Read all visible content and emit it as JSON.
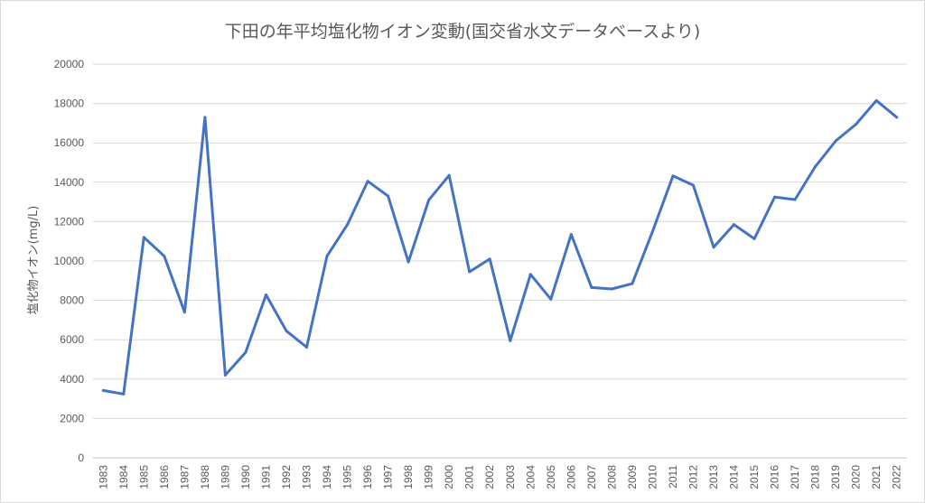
{
  "chart_data": {
    "type": "line",
    "title": "下田の年平均塩化物イオン変動(国交省水文データベースより)",
    "xlabel": "",
    "ylabel": "塩化物イオン(mg/L)",
    "ylim": [
      0,
      20000
    ],
    "yticks": [
      0,
      2000,
      4000,
      6000,
      8000,
      10000,
      12000,
      14000,
      16000,
      18000,
      20000
    ],
    "grid": true,
    "legend": "none",
    "categories": [
      "1983",
      "1984",
      "1985",
      "1986",
      "1987",
      "1988",
      "1989",
      "1990",
      "1991",
      "1992",
      "1993",
      "1994",
      "1995",
      "1996",
      "1997",
      "1998",
      "1999",
      "2000",
      "2001",
      "2002",
      "2003",
      "2004",
      "2005",
      "2006",
      "2007",
      "2008",
      "2009",
      "2010",
      "2011",
      "2012",
      "2013",
      "2014",
      "2015",
      "2016",
      "2017",
      "2018",
      "2019",
      "2020",
      "2021",
      "2022"
    ],
    "series": [
      {
        "color": "#4472c4",
        "values": [
          3420,
          3240,
          11200,
          10250,
          7400,
          17300,
          4200,
          5360,
          8280,
          6450,
          5620,
          10250,
          11850,
          14050,
          13300,
          9950,
          13100,
          14350,
          9450,
          10100,
          5950,
          9320,
          8060,
          11350,
          8650,
          8580,
          8850,
          11500,
          14320,
          13850,
          10700,
          11850,
          11130,
          13250,
          13120,
          14800,
          16100,
          16950,
          18150,
          17300
        ]
      }
    ]
  }
}
